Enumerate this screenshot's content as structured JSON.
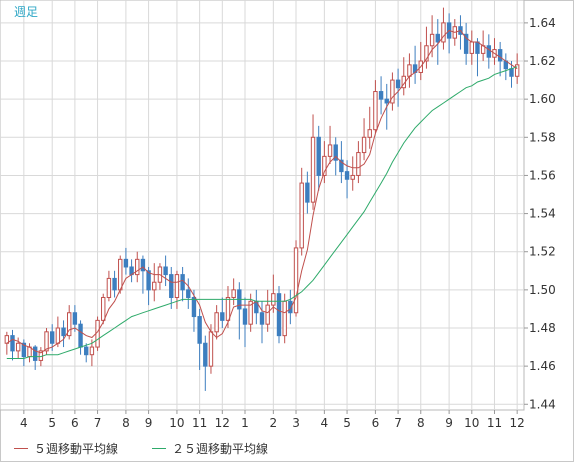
{
  "header": {
    "title": "週足"
  },
  "legend": [
    {
      "label": "５週移動平均線",
      "color": "#c0504d"
    },
    {
      "label": "２５週移動平均線",
      "color": "#2eaa6a"
    }
  ],
  "colors": {
    "up": "#c0504d",
    "down": "#3d7ebf",
    "ma5": "#c0504d",
    "ma25": "#2eaa6a",
    "grid": "#d9d9d9"
  },
  "chart_data": {
    "type": "candlestick",
    "title": "週足",
    "xlabel": "",
    "ylabel": "",
    "ylim": [
      1.437,
      1.652
    ],
    "yticks": [
      1.44,
      1.46,
      1.48,
      1.5,
      1.52,
      1.54,
      1.56,
      1.58,
      1.6,
      1.62,
      1.64
    ],
    "yticklabels": [
      "1.44",
      "1.46",
      "1.48",
      "1.50",
      "1.52",
      "1.54",
      "1.56",
      "1.58",
      "1.60",
      "1.62",
      "1.64"
    ],
    "xtick_labels": [
      "4",
      "5",
      "6",
      "7",
      "8",
      "9",
      "10",
      "11",
      "12",
      "1",
      "2",
      "3",
      "4",
      "5",
      "6",
      "7",
      "8",
      "9",
      "10",
      "11",
      "12"
    ],
    "xtick_index": [
      3,
      8,
      12,
      16,
      21,
      25,
      30,
      34,
      38,
      42,
      47,
      51,
      56,
      60,
      65,
      69,
      73,
      78,
      82,
      86,
      90
    ],
    "grid": true,
    "legend_position": "bottom-left",
    "candles": [
      [
        1.472,
        1.476,
        1.478,
        1.466
      ],
      [
        1.476,
        1.468,
        1.479,
        1.463
      ],
      [
        1.468,
        1.472,
        1.475,
        1.464
      ],
      [
        1.472,
        1.465,
        1.474,
        1.46
      ],
      [
        1.465,
        1.47,
        1.472,
        1.462
      ],
      [
        1.47,
        1.463,
        1.471,
        1.458
      ],
      [
        1.463,
        1.468,
        1.47,
        1.46
      ],
      [
        1.468,
        1.478,
        1.48,
        1.466
      ],
      [
        1.478,
        1.472,
        1.482,
        1.468
      ],
      [
        1.472,
        1.48,
        1.486,
        1.47
      ],
      [
        1.48,
        1.476,
        1.484,
        1.47
      ],
      [
        1.476,
        1.488,
        1.492,
        1.474
      ],
      [
        1.488,
        1.482,
        1.492,
        1.478
      ],
      [
        1.482,
        1.47,
        1.484,
        1.466
      ],
      [
        1.47,
        1.466,
        1.472,
        1.462
      ],
      [
        1.466,
        1.47,
        1.474,
        1.46
      ],
      [
        1.47,
        1.484,
        1.486,
        1.468
      ],
      [
        1.484,
        1.496,
        1.498,
        1.482
      ],
      [
        1.496,
        1.506,
        1.51,
        1.494
      ],
      [
        1.506,
        1.5,
        1.51,
        1.496
      ],
      [
        1.5,
        1.516,
        1.518,
        1.498
      ],
      [
        1.516,
        1.512,
        1.522,
        1.508
      ],
      [
        1.512,
        1.508,
        1.516,
        1.504
      ],
      [
        1.508,
        1.516,
        1.52,
        1.504
      ],
      [
        1.516,
        1.51,
        1.518,
        1.498
      ],
      [
        1.51,
        1.5,
        1.512,
        1.492
      ],
      [
        1.5,
        1.504,
        1.514,
        1.494
      ],
      [
        1.504,
        1.512,
        1.514,
        1.5
      ],
      [
        1.512,
        1.508,
        1.518,
        1.502
      ],
      [
        1.508,
        1.496,
        1.512,
        1.49
      ],
      [
        1.496,
        1.508,
        1.51,
        1.49
      ],
      [
        1.508,
        1.5,
        1.512,
        1.494
      ],
      [
        1.5,
        1.496,
        1.506,
        1.49
      ],
      [
        1.496,
        1.486,
        1.5,
        1.478
      ],
      [
        1.486,
        1.472,
        1.49,
        1.458
      ],
      [
        1.472,
        1.46,
        1.476,
        1.447
      ],
      [
        1.46,
        1.478,
        1.482,
        1.456
      ],
      [
        1.478,
        1.488,
        1.492,
        1.474
      ],
      [
        1.488,
        1.484,
        1.496,
        1.48
      ],
      [
        1.484,
        1.496,
        1.502,
        1.48
      ],
      [
        1.496,
        1.5,
        1.506,
        1.492
      ],
      [
        1.5,
        1.49,
        1.504,
        1.474
      ],
      [
        1.49,
        1.482,
        1.496,
        1.47
      ],
      [
        1.482,
        1.494,
        1.498,
        1.478
      ],
      [
        1.494,
        1.488,
        1.5,
        1.482
      ],
      [
        1.488,
        1.482,
        1.494,
        1.472
      ],
      [
        1.482,
        1.492,
        1.5,
        1.478
      ],
      [
        1.492,
        1.498,
        1.508,
        1.488
      ],
      [
        1.498,
        1.476,
        1.502,
        1.472
      ],
      [
        1.476,
        1.494,
        1.498,
        1.472
      ],
      [
        1.494,
        1.488,
        1.5,
        1.482
      ],
      [
        1.488,
        1.522,
        1.526,
        1.486
      ],
      [
        1.522,
        1.556,
        1.564,
        1.518
      ],
      [
        1.556,
        1.546,
        1.562,
        1.54
      ],
      [
        1.546,
        1.58,
        1.592,
        1.542
      ],
      [
        1.58,
        1.56,
        1.586,
        1.552
      ],
      [
        1.56,
        1.57,
        1.578,
        1.556
      ],
      [
        1.57,
        1.576,
        1.586,
        1.566
      ],
      [
        1.576,
        1.568,
        1.58,
        1.56
      ],
      [
        1.568,
        1.562,
        1.578,
        1.556
      ],
      [
        1.562,
        1.558,
        1.568,
        1.548
      ],
      [
        1.558,
        1.56,
        1.57,
        1.552
      ],
      [
        1.56,
        1.572,
        1.578,
        1.556
      ],
      [
        1.572,
        1.58,
        1.59,
        1.568
      ],
      [
        1.58,
        1.584,
        1.596,
        1.574
      ],
      [
        1.584,
        1.604,
        1.61,
        1.582
      ],
      [
        1.604,
        1.6,
        1.612,
        1.592
      ],
      [
        1.6,
        1.598,
        1.608,
        1.584
      ],
      [
        1.598,
        1.61,
        1.614,
        1.594
      ],
      [
        1.61,
        1.606,
        1.616,
        1.596
      ],
      [
        1.606,
        1.612,
        1.622,
        1.602
      ],
      [
        1.612,
        1.618,
        1.624,
        1.606
      ],
      [
        1.618,
        1.614,
        1.628,
        1.608
      ],
      [
        1.614,
        1.62,
        1.63,
        1.61
      ],
      [
        1.62,
        1.628,
        1.638,
        1.616
      ],
      [
        1.628,
        1.634,
        1.644,
        1.622
      ],
      [
        1.634,
        1.63,
        1.642,
        1.618
      ],
      [
        1.63,
        1.64,
        1.648,
        1.626
      ],
      [
        1.64,
        1.632,
        1.645,
        1.624
      ],
      [
        1.632,
        1.638,
        1.642,
        1.628
      ],
      [
        1.638,
        1.634,
        1.644,
        1.626
      ],
      [
        1.634,
        1.624,
        1.64,
        1.618
      ],
      [
        1.624,
        1.63,
        1.636,
        1.618
      ],
      [
        1.63,
        1.624,
        1.632,
        1.612
      ],
      [
        1.624,
        1.628,
        1.636,
        1.62
      ],
      [
        1.628,
        1.622,
        1.634,
        1.616
      ],
      [
        1.622,
        1.626,
        1.632,
        1.618
      ],
      [
        1.626,
        1.62,
        1.63,
        1.612
      ],
      [
        1.62,
        1.616,
        1.624,
        1.61
      ],
      [
        1.616,
        1.612,
        1.62,
        1.606
      ],
      [
        1.612,
        1.618,
        1.624,
        1.608
      ]
    ],
    "series": [
      {
        "name": "５週移動平均線",
        "values": [
          1.472,
          1.474,
          1.473,
          1.471,
          1.47,
          1.468,
          1.467,
          1.469,
          1.47,
          1.472,
          1.474,
          1.479,
          1.48,
          1.478,
          1.476,
          1.475,
          1.478,
          1.483,
          1.49,
          1.494,
          1.5,
          1.506,
          1.508,
          1.51,
          1.512,
          1.509,
          1.508,
          1.508,
          1.506,
          1.504,
          1.504,
          1.505,
          1.502,
          1.497,
          1.492,
          1.483,
          1.478,
          1.475,
          1.477,
          1.483,
          1.491,
          1.492,
          1.492,
          1.492,
          1.494,
          1.489,
          1.488,
          1.491,
          1.489,
          1.488,
          1.49,
          1.496,
          1.51,
          1.521,
          1.539,
          1.553,
          1.562,
          1.567,
          1.57,
          1.567,
          1.565,
          1.564,
          1.564,
          1.566,
          1.571,
          1.582,
          1.59,
          1.596,
          1.601,
          1.604,
          1.608,
          1.612,
          1.614,
          1.617,
          1.621,
          1.626,
          1.629,
          1.633,
          1.636,
          1.635,
          1.636,
          1.632,
          1.63,
          1.63,
          1.628,
          1.626,
          1.624,
          1.622,
          1.62,
          1.618,
          1.616
        ]
      },
      {
        "name": "２５週移動平均線",
        "values": [
          1.464,
          1.464,
          1.464,
          1.464,
          1.465,
          1.465,
          1.465,
          1.466,
          1.466,
          1.466,
          1.467,
          1.468,
          1.469,
          1.47,
          1.471,
          1.472,
          1.474,
          1.476,
          1.478,
          1.48,
          1.482,
          1.484,
          1.486,
          1.487,
          1.488,
          1.489,
          1.49,
          1.491,
          1.492,
          1.493,
          1.494,
          1.495,
          1.495,
          1.495,
          1.495,
          1.495,
          1.495,
          1.495,
          1.495,
          1.495,
          1.495,
          1.495,
          1.495,
          1.495,
          1.494,
          1.494,
          1.494,
          1.494,
          1.494,
          1.494,
          1.495,
          1.497,
          1.499,
          1.502,
          1.505,
          1.509,
          1.513,
          1.517,
          1.521,
          1.525,
          1.529,
          1.533,
          1.537,
          1.541,
          1.546,
          1.551,
          1.556,
          1.561,
          1.567,
          1.572,
          1.577,
          1.581,
          1.585,
          1.588,
          1.591,
          1.594,
          1.596,
          1.598,
          1.6,
          1.602,
          1.604,
          1.606,
          1.607,
          1.609,
          1.61,
          1.611,
          1.613,
          1.614,
          1.615,
          1.616,
          1.617
        ]
      }
    ]
  }
}
